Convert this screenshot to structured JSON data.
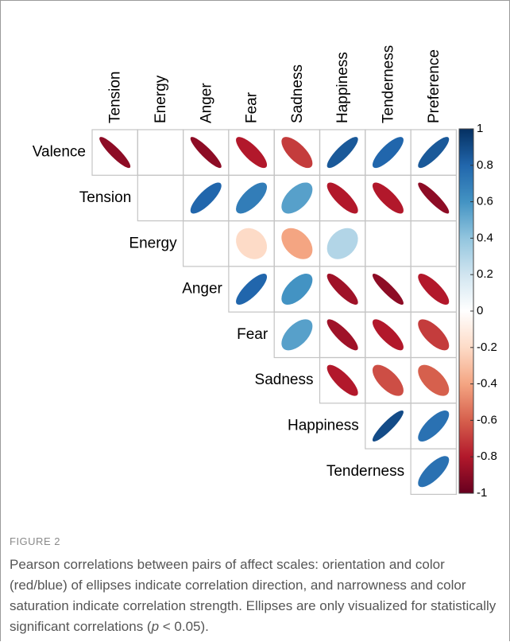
{
  "chart_data": {
    "type": "corrplot",
    "columns": [
      "Tension",
      "Energy",
      "Anger",
      "Fear",
      "Sadness",
      "Happiness",
      "Tenderness",
      "Preference"
    ],
    "rows": [
      "Valence",
      "Tension",
      "Energy",
      "Anger",
      "Fear",
      "Sadness",
      "Happiness",
      "Tenderness"
    ],
    "values": [
      [
        -0.9,
        null,
        -0.9,
        -0.8,
        -0.7,
        0.85,
        0.8,
        0.85
      ],
      [
        null,
        0.8,
        0.7,
        0.55,
        -0.8,
        -0.8,
        -0.9
      ],
      [
        null,
        -0.2,
        -0.4,
        0.3,
        null,
        null
      ],
      [
        0.8,
        0.6,
        -0.85,
        -0.9,
        -0.8
      ],
      [
        0.55,
        -0.85,
        -0.8,
        -0.7
      ],
      [
        -0.8,
        -0.65,
        -0.6
      ],
      [
        0.9,
        0.75
      ],
      [
        0.75
      ]
    ],
    "clim": [
      -1,
      1
    ],
    "cticks": [
      1,
      0.8,
      0.6,
      0.4,
      0.2,
      0,
      -0.2,
      -0.4,
      -0.6,
      -0.8,
      -1
    ],
    "colorscale": [
      "#67001F",
      "#B2182B",
      "#D6604D",
      "#F4A582",
      "#FDDBC7",
      "#FFFFFF",
      "#D1E5F0",
      "#92C5DE",
      "#4393C3",
      "#2166AC",
      "#053061"
    ],
    "caption_label": "FIGURE 2",
    "caption": "Pearson correlations between pairs of affect scales: orientation and color (red/blue) of ellipses indicate correlation direction, and narrowness and color saturation indicate correlation strength. Ellipses are only visualized for statistically significant correlations (",
    "caption_italic": "p",
    "caption_end": " < 0.05)."
  }
}
